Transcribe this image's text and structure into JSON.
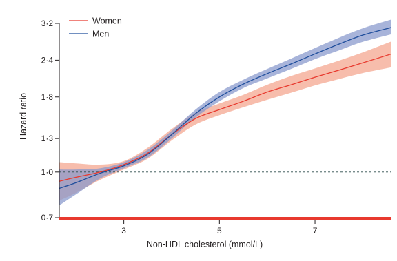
{
  "chart_data": {
    "type": "line",
    "xlabel": "Non-HDL cholesterol (mmol/L)",
    "ylabel": "Hazard ratio",
    "xlim": [
      1.65,
      8.6
    ],
    "ylim": [
      0.7,
      3.2
    ],
    "y_scale": "log",
    "x_ticks": [
      3,
      5,
      7
    ],
    "x_tick_labels": [
      "3",
      "5",
      "7"
    ],
    "y_ticks": [
      0.7,
      1.0,
      1.3,
      1.8,
      2.4,
      3.2
    ],
    "y_tick_labels": [
      "0·7",
      "1·0",
      "1·3",
      "1·8",
      "2·4",
      "3·2"
    ],
    "reference_line": {
      "y": 1.0,
      "style": "dashed"
    },
    "legend_position": "top-left",
    "series": [
      {
        "name": "Women",
        "color": "#e8392e",
        "band_color": "#f4a48c",
        "x": [
          1.65,
          2.0,
          2.5,
          3.0,
          3.5,
          4.0,
          4.5,
          5.0,
          5.5,
          6.0,
          6.5,
          7.0,
          7.5,
          8.0,
          8.6
        ],
        "y": [
          0.93,
          0.96,
          1.0,
          1.06,
          1.16,
          1.34,
          1.52,
          1.63,
          1.74,
          1.87,
          1.98,
          2.1,
          2.22,
          2.35,
          2.52
        ],
        "lower": [
          0.8,
          0.85,
          0.94,
          1.02,
          1.11,
          1.28,
          1.45,
          1.56,
          1.66,
          1.76,
          1.86,
          1.97,
          2.07,
          2.17,
          2.27
        ],
        "upper": [
          1.08,
          1.07,
          1.06,
          1.09,
          1.21,
          1.4,
          1.59,
          1.71,
          1.83,
          1.98,
          2.12,
          2.25,
          2.39,
          2.55,
          2.78
        ]
      },
      {
        "name": "Men",
        "color": "#1f4e9c",
        "band_color": "#8697cc",
        "x": [
          1.65,
          2.0,
          2.5,
          3.0,
          3.5,
          4.0,
          4.5,
          5.0,
          5.5,
          6.0,
          6.5,
          7.0,
          7.5,
          8.0,
          8.6
        ],
        "y": [
          0.88,
          0.92,
          0.99,
          1.05,
          1.15,
          1.34,
          1.58,
          1.8,
          1.99,
          2.16,
          2.33,
          2.52,
          2.72,
          2.92,
          3.1
        ],
        "lower": [
          0.77,
          0.84,
          0.95,
          1.03,
          1.12,
          1.3,
          1.53,
          1.74,
          1.93,
          2.08,
          2.24,
          2.42,
          2.59,
          2.77,
          2.94
        ],
        "upper": [
          1.02,
          1.02,
          1.03,
          1.08,
          1.19,
          1.38,
          1.63,
          1.87,
          2.06,
          2.24,
          2.43,
          2.64,
          2.86,
          3.08,
          3.3
        ]
      }
    ],
    "x_extent": [
      1.65,
      8.6
    ]
  }
}
